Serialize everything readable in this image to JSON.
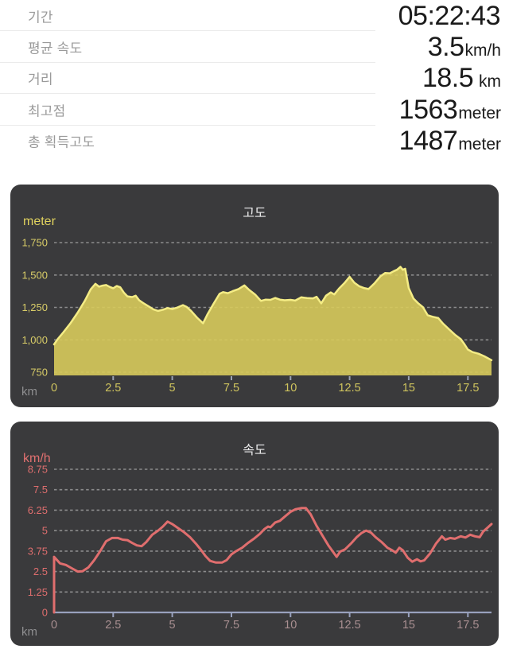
{
  "stats": {
    "rows": [
      {
        "label": "기간",
        "value": "05:22:43",
        "unit": ""
      },
      {
        "label": "평균 속도",
        "value": "3.5",
        "unit": "km/h"
      },
      {
        "label": "거리",
        "value": "18.5",
        "unit": " km"
      },
      {
        "label": "최고점",
        "value": "1563",
        "unit": "meter"
      },
      {
        "label": "총 획득고도",
        "value": "1487",
        "unit": "meter"
      }
    ]
  },
  "chart_data": [
    {
      "type": "area",
      "title": "고도",
      "unit_label": "meter",
      "x_unit_label": "km",
      "xlabel": "km",
      "ylabel": "meter",
      "xlim": [
        0,
        18.5
      ],
      "ylim": [
        750,
        1750
      ],
      "grid": "dashed-horizontal",
      "legend": "none",
      "yticks": [
        750,
        1000,
        1250,
        1500,
        1750
      ],
      "ytick_labels": [
        "750",
        "1,000",
        "1,250",
        "1,500",
        "1,750"
      ],
      "xticks": [
        0,
        2.5,
        5,
        7.5,
        10,
        12.5,
        15,
        17.5
      ],
      "xtick_labels": [
        "0",
        "2.5",
        "5",
        "7.5",
        "10",
        "12.5",
        "15",
        "17.5"
      ],
      "colors": {
        "fill": "#d8cb5b",
        "line": "#f4ec85",
        "ytick": "#d9cd68",
        "xtick": "#cfc45e",
        "title": "#e9e9ea",
        "unit": "#e0d25e",
        "grid": "rgba(255,255,255,0.42)",
        "tickmark": "#9aa2b4"
      },
      "points": [
        [
          0,
          965
        ],
        [
          0.15,
          1005
        ],
        [
          0.4,
          1060
        ],
        [
          0.7,
          1130
        ],
        [
          1.0,
          1210
        ],
        [
          1.3,
          1300
        ],
        [
          1.55,
          1390
        ],
        [
          1.75,
          1432
        ],
        [
          1.9,
          1410
        ],
        [
          2.05,
          1418
        ],
        [
          2.2,
          1423
        ],
        [
          2.35,
          1408
        ],
        [
          2.5,
          1398
        ],
        [
          2.65,
          1415
        ],
        [
          2.8,
          1405
        ],
        [
          2.95,
          1365
        ],
        [
          3.1,
          1335
        ],
        [
          3.3,
          1330
        ],
        [
          3.45,
          1340
        ],
        [
          3.6,
          1305
        ],
        [
          3.8,
          1280
        ],
        [
          4.0,
          1258
        ],
        [
          4.2,
          1235
        ],
        [
          4.4,
          1223
        ],
        [
          4.6,
          1232
        ],
        [
          4.8,
          1245
        ],
        [
          5.0,
          1238
        ],
        [
          5.2,
          1248
        ],
        [
          5.45,
          1268
        ],
        [
          5.6,
          1255
        ],
        [
          5.8,
          1222
        ],
        [
          6.05,
          1170
        ],
        [
          6.3,
          1128
        ],
        [
          6.5,
          1200
        ],
        [
          6.75,
          1280
        ],
        [
          7.0,
          1355
        ],
        [
          7.15,
          1368
        ],
        [
          7.35,
          1360
        ],
        [
          7.55,
          1375
        ],
        [
          7.8,
          1392
        ],
        [
          8.05,
          1420
        ],
        [
          8.25,
          1385
        ],
        [
          8.5,
          1350
        ],
        [
          8.75,
          1300
        ],
        [
          8.95,
          1310
        ],
        [
          9.15,
          1308
        ],
        [
          9.35,
          1323
        ],
        [
          9.55,
          1310
        ],
        [
          9.75,
          1305
        ],
        [
          10.0,
          1308
        ],
        [
          10.2,
          1303
        ],
        [
          10.45,
          1328
        ],
        [
          10.7,
          1322
        ],
        [
          10.95,
          1320
        ],
        [
          11.1,
          1332
        ],
        [
          11.3,
          1281
        ],
        [
          11.5,
          1340
        ],
        [
          11.7,
          1366
        ],
        [
          11.85,
          1350
        ],
        [
          12.05,
          1395
        ],
        [
          12.3,
          1442
        ],
        [
          12.5,
          1486
        ],
        [
          12.7,
          1440
        ],
        [
          12.9,
          1414
        ],
        [
          13.1,
          1400
        ],
        [
          13.3,
          1392
        ],
        [
          13.55,
          1435
        ],
        [
          13.8,
          1490
        ],
        [
          14.0,
          1515
        ],
        [
          14.2,
          1513
        ],
        [
          14.35,
          1528
        ],
        [
          14.5,
          1540
        ],
        [
          14.65,
          1563
        ],
        [
          14.75,
          1540
        ],
        [
          14.85,
          1548
        ],
        [
          15.0,
          1400
        ],
        [
          15.2,
          1318
        ],
        [
          15.4,
          1282
        ],
        [
          15.6,
          1252
        ],
        [
          15.8,
          1190
        ],
        [
          16.0,
          1178
        ],
        [
          16.25,
          1168
        ],
        [
          16.45,
          1125
        ],
        [
          16.7,
          1082
        ],
        [
          16.95,
          1040
        ],
        [
          17.2,
          1005
        ],
        [
          17.35,
          968
        ],
        [
          17.5,
          925
        ],
        [
          17.7,
          905
        ],
        [
          17.95,
          893
        ],
        [
          18.2,
          873
        ],
        [
          18.5,
          843
        ]
      ]
    },
    {
      "type": "line",
      "title": "속도",
      "unit_label": "km/h",
      "x_unit_label": "km",
      "xlabel": "km",
      "ylabel": "km/h",
      "xlim": [
        0,
        18.5
      ],
      "ylim": [
        0,
        8.75
      ],
      "grid": "dashed-horizontal",
      "legend": "none",
      "starts_from_zero_baseline": true,
      "yticks": [
        0,
        1.25,
        2.5,
        3.75,
        5,
        6.25,
        7.5,
        8.75
      ],
      "ytick_labels": [
        "0",
        "1.25",
        "2.5",
        "3.75",
        "5",
        "6.25",
        "7.5",
        "8.75"
      ],
      "xticks": [
        0,
        2.5,
        5,
        7.5,
        10,
        12.5,
        15,
        17.5
      ],
      "xtick_labels": [
        "0",
        "2.5",
        "5",
        "7.5",
        "10",
        "12.5",
        "15",
        "17.5"
      ],
      "colors": {
        "line": "#e06e6e",
        "ytick": "#de6e6e",
        "xtick": "#a98f91",
        "title": "#e9e9ea",
        "unit": "#e07070",
        "grid": "rgba(255,255,255,0.42)",
        "baseline": "#98a1bd",
        "tickmark": "#98a1bd"
      },
      "points": [
        [
          0,
          0
        ],
        [
          0,
          3.4
        ],
        [
          0.25,
          3.0
        ],
        [
          0.5,
          2.9
        ],
        [
          0.75,
          2.7
        ],
        [
          1.0,
          2.5
        ],
        [
          1.2,
          2.52
        ],
        [
          1.45,
          2.75
        ],
        [
          1.7,
          3.2
        ],
        [
          1.95,
          3.75
        ],
        [
          2.2,
          4.35
        ],
        [
          2.45,
          4.55
        ],
        [
          2.7,
          4.55
        ],
        [
          2.9,
          4.45
        ],
        [
          3.1,
          4.42
        ],
        [
          3.3,
          4.25
        ],
        [
          3.5,
          4.1
        ],
        [
          3.7,
          4.05
        ],
        [
          3.9,
          4.3
        ],
        [
          4.15,
          4.75
        ],
        [
          4.4,
          5.0
        ],
        [
          4.6,
          5.25
        ],
        [
          4.8,
          5.55
        ],
        [
          5.0,
          5.4
        ],
        [
          5.25,
          5.15
        ],
        [
          5.5,
          4.9
        ],
        [
          5.75,
          4.6
        ],
        [
          6.0,
          4.2
        ],
        [
          6.2,
          3.85
        ],
        [
          6.4,
          3.45
        ],
        [
          6.6,
          3.15
        ],
        [
          6.85,
          3.05
        ],
        [
          7.1,
          3.05
        ],
        [
          7.3,
          3.2
        ],
        [
          7.5,
          3.55
        ],
        [
          7.7,
          3.75
        ],
        [
          7.95,
          3.95
        ],
        [
          8.2,
          4.25
        ],
        [
          8.45,
          4.5
        ],
        [
          8.7,
          4.8
        ],
        [
          8.9,
          5.1
        ],
        [
          9.05,
          5.25
        ],
        [
          9.15,
          5.2
        ],
        [
          9.35,
          5.5
        ],
        [
          9.55,
          5.6
        ],
        [
          9.75,
          5.85
        ],
        [
          10.0,
          6.15
        ],
        [
          10.2,
          6.3
        ],
        [
          10.45,
          6.38
        ],
        [
          10.65,
          6.38
        ],
        [
          10.85,
          6.0
        ],
        [
          11.1,
          5.3
        ],
        [
          11.35,
          4.7
        ],
        [
          11.6,
          4.1
        ],
        [
          11.8,
          3.7
        ],
        [
          11.95,
          3.4
        ],
        [
          12.1,
          3.72
        ],
        [
          12.3,
          3.85
        ],
        [
          12.55,
          4.2
        ],
        [
          12.8,
          4.6
        ],
        [
          13.0,
          4.85
        ],
        [
          13.2,
          5.0
        ],
        [
          13.4,
          4.88
        ],
        [
          13.6,
          4.6
        ],
        [
          13.85,
          4.3
        ],
        [
          14.1,
          3.95
        ],
        [
          14.3,
          3.8
        ],
        [
          14.45,
          3.65
        ],
        [
          14.6,
          3.95
        ],
        [
          14.75,
          3.8
        ],
        [
          14.95,
          3.35
        ],
        [
          15.15,
          3.1
        ],
        [
          15.35,
          3.25
        ],
        [
          15.5,
          3.12
        ],
        [
          15.65,
          3.18
        ],
        [
          15.9,
          3.6
        ],
        [
          16.15,
          4.2
        ],
        [
          16.4,
          4.65
        ],
        [
          16.55,
          4.45
        ],
        [
          16.75,
          4.55
        ],
        [
          16.95,
          4.5
        ],
        [
          17.2,
          4.65
        ],
        [
          17.4,
          4.58
        ],
        [
          17.6,
          4.75
        ],
        [
          17.8,
          4.65
        ],
        [
          18.0,
          4.6
        ],
        [
          18.15,
          4.95
        ],
        [
          18.35,
          5.2
        ],
        [
          18.5,
          5.4
        ]
      ]
    }
  ]
}
